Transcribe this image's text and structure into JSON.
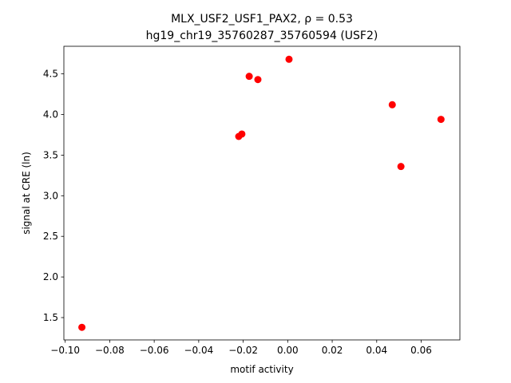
{
  "chart_data": {
    "type": "scatter",
    "title": "MLX_USF2_USF1_PAX2, ρ = 0.53",
    "subtitle": "hg19_chr19_35760287_35760594 (USF2)",
    "x_label": "motif activity",
    "y_label": "signal at CRE (ln)",
    "color": "#ff0000",
    "x": [
      -0.0925,
      -0.022,
      -0.0206,
      -0.0173,
      -0.0134,
      0.0006,
      0.047,
      0.0509,
      0.0689
    ],
    "values": [
      1.38,
      3.73,
      3.76,
      4.47,
      4.43,
      4.68,
      4.12,
      3.36,
      3.94
    ],
    "xlim": [
      -0.1006,
      0.0774
    ],
    "ylim": [
      1.225,
      4.84
    ],
    "xticks": [
      {
        "value": -0.1,
        "label": "−0.10"
      },
      {
        "value": -0.08,
        "label": "−0.08"
      },
      {
        "value": -0.06,
        "label": "−0.06"
      },
      {
        "value": -0.04,
        "label": "−0.04"
      },
      {
        "value": -0.02,
        "label": "−0.02"
      },
      {
        "value": 0,
        "label": "0.00"
      },
      {
        "value": 0.02,
        "label": "0.02"
      },
      {
        "value": 0.04,
        "label": "0.04"
      },
      {
        "value": 0.06,
        "label": "0.06"
      }
    ],
    "yticks": [
      1.5,
      {
        "value": 2,
        "label": "2.0"
      },
      2.5,
      {
        "value": 3,
        "label": "3.0"
      },
      3.5,
      {
        "value": 4,
        "label": "4.0"
      },
      4.5
    ]
  }
}
